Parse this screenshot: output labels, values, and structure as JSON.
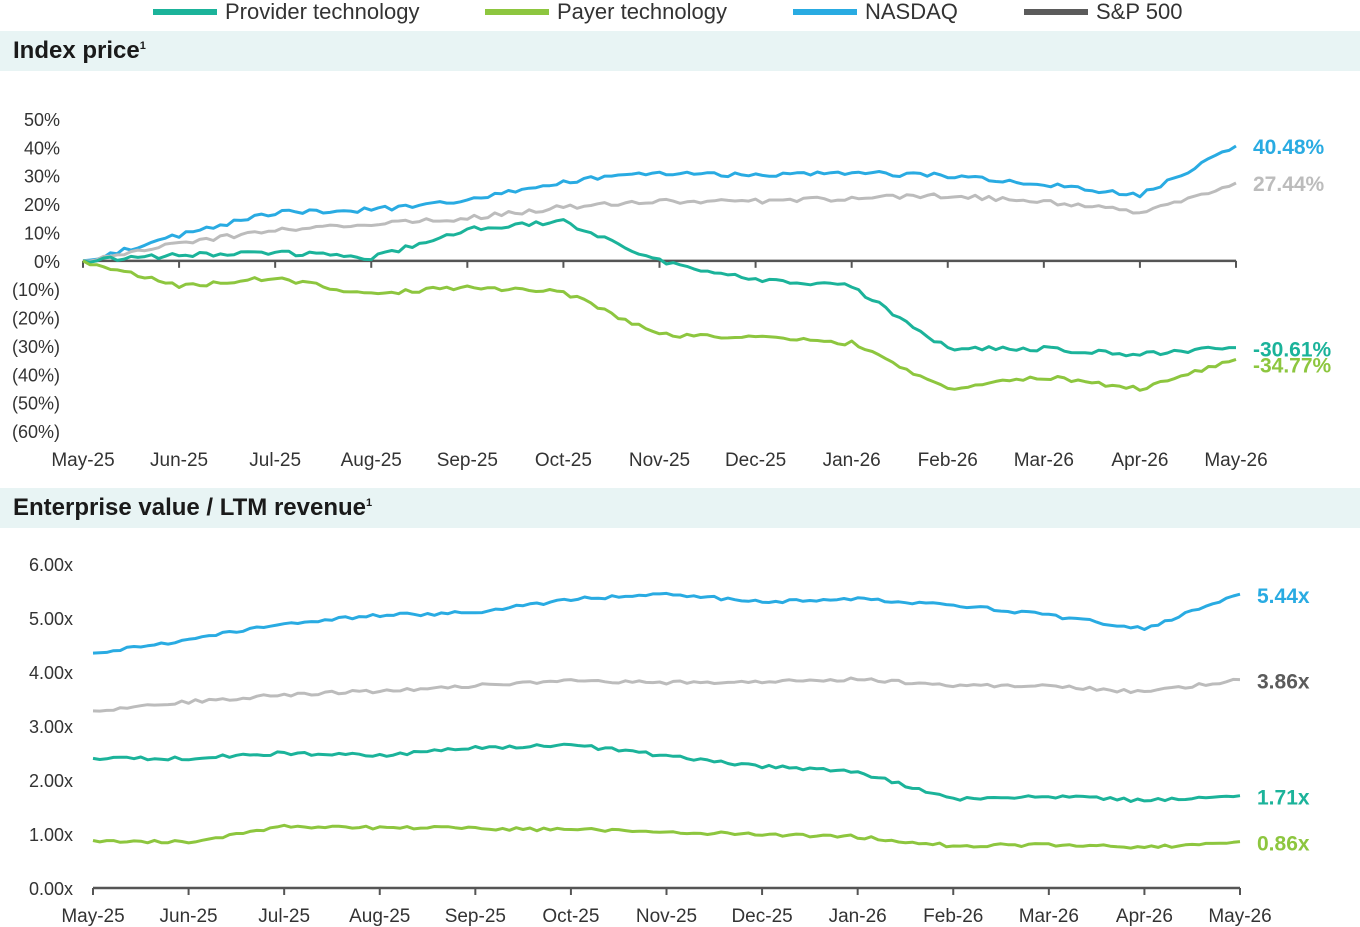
{
  "legend": [
    {
      "name": "Provider technology",
      "color": "#1bb39a"
    },
    {
      "name": "Payer technology",
      "color": "#8dc63f"
    },
    {
      "name": "NASDAQ",
      "color": "#29abe2"
    },
    {
      "name": "S&P 500",
      "color": "#5b5b5b"
    }
  ],
  "chart_data": [
    {
      "type": "line",
      "title": "Index price",
      "title_sup": "1",
      "x": [
        "May-25",
        "Jun-25",
        "Jul-25",
        "Aug-25",
        "Sep-25",
        "Oct-25",
        "Nov-25",
        "Dec-25",
        "Jan-26",
        "Feb-26",
        "Mar-26",
        "Apr-26",
        "May-26"
      ],
      "ylim": [
        -60,
        50
      ],
      "yticks": [
        50,
        40,
        30,
        20,
        10,
        0,
        -10,
        -20,
        -30,
        -40,
        -50,
        -60
      ],
      "ytick_labels": [
        "50%",
        "40%",
        "30%",
        "20%",
        "10%",
        "0%",
        "(10%)",
        "(20%)",
        "(30%)",
        "(40%)",
        "(50%)",
        "(60%)"
      ],
      "series": [
        {
          "name": "NASDAQ",
          "color": "#29abe2",
          "values": [
            0,
            9,
            17,
            18,
            21,
            28,
            31,
            30,
            31,
            30,
            27,
            23,
            40.48
          ],
          "end_label": "40.48%"
        },
        {
          "name": "S&P 500",
          "color": "#bcbcbc",
          "values": [
            0,
            6,
            11,
            13,
            15,
            19,
            21,
            21,
            22,
            23,
            21,
            17,
            27.44
          ],
          "end_label": "27.44%"
        },
        {
          "name": "Provider technology",
          "color": "#1bb39a",
          "values": [
            0,
            2,
            3,
            1,
            11,
            14,
            0,
            -7,
            -9,
            -31,
            -31,
            -33,
            -30.61
          ],
          "end_label": "-30.61%"
        },
        {
          "name": "Payer technology",
          "color": "#8dc63f",
          "values": [
            0,
            -9,
            -6,
            -12,
            -9,
            -11,
            -26,
            -27,
            -29,
            -45,
            -41,
            -45,
            -34.77
          ],
          "end_label": "-34.77%"
        }
      ]
    },
    {
      "type": "line",
      "title": "Enterprise value / LTM revenue",
      "title_sup": "1",
      "x": [
        "May-25",
        "Jun-25",
        "Jul-25",
        "Aug-25",
        "Sep-25",
        "Oct-25",
        "Nov-25",
        "Dec-25",
        "Jan-26",
        "Feb-26",
        "Mar-26",
        "Apr-26",
        "May-26"
      ],
      "ylim": [
        0,
        6
      ],
      "yticks": [
        6,
        5,
        4,
        3,
        2,
        1,
        0
      ],
      "ytick_labels": [
        "6.00x",
        "5.00x",
        "4.00x",
        "3.00x",
        "2.00x",
        "1.00x",
        "0.00x"
      ],
      "series": [
        {
          "name": "NASDAQ",
          "color": "#29abe2",
          "values": [
            4.35,
            4.6,
            4.9,
            5.05,
            5.1,
            5.35,
            5.45,
            5.3,
            5.35,
            5.25,
            5.05,
            4.8,
            5.44
          ],
          "end_label": "5.44x"
        },
        {
          "name": "S&P 500",
          "color": "#bcbcbc",
          "values": [
            3.28,
            3.45,
            3.58,
            3.65,
            3.75,
            3.83,
            3.8,
            3.82,
            3.87,
            3.75,
            3.75,
            3.62,
            3.86
          ],
          "end_label": "3.86x"
        },
        {
          "name": "Provider technology",
          "color": "#1bb39a",
          "values": [
            2.4,
            2.4,
            2.5,
            2.45,
            2.6,
            2.65,
            2.45,
            2.25,
            2.15,
            1.65,
            1.7,
            1.62,
            1.71
          ],
          "end_label": "1.71x"
        },
        {
          "name": "Payer technology",
          "color": "#8dc63f",
          "values": [
            0.88,
            0.85,
            1.15,
            1.12,
            1.1,
            1.08,
            1.05,
            0.98,
            0.95,
            0.78,
            0.8,
            0.75,
            0.86
          ],
          "end_label": "0.86x"
        }
      ]
    }
  ]
}
